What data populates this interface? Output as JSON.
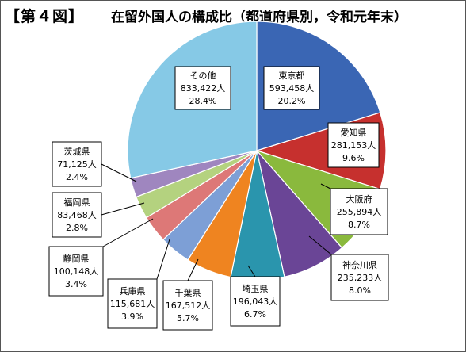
{
  "figure_label": "【第４図】",
  "chart_data": {
    "type": "pie",
    "title": "在留外国人の構成比（都道府県別，令和元年末）",
    "slices": [
      {
        "name": "東京都",
        "value": 593458,
        "value_label": "593,458人",
        "pct": "20.2%",
        "color": "#3a66b4"
      },
      {
        "name": "愛知県",
        "value": 281153,
        "value_label": "281,153人",
        "pct": "9.6%",
        "color": "#c6302e"
      },
      {
        "name": "大阪府",
        "value": 255894,
        "value_label": "255,894人",
        "pct": "8.7%",
        "color": "#8ab93d"
      },
      {
        "name": "神奈川県",
        "value": 235233,
        "value_label": "235,233人",
        "pct": "8.0%",
        "color": "#6a4596"
      },
      {
        "name": "埼玉県",
        "value": 196043,
        "value_label": "196,043人",
        "pct": "6.7%",
        "color": "#2a95ad"
      },
      {
        "name": "千葉県",
        "value": 167512,
        "value_label": "167,512人",
        "pct": "5.7%",
        "color": "#ef8420"
      },
      {
        "name": "兵庫県",
        "value": 115681,
        "value_label": "115,681人",
        "pct": "3.9%",
        "color": "#7d9fd6"
      },
      {
        "name": "静岡県",
        "value": 100148,
        "value_label": "100,148人",
        "pct": "3.4%",
        "color": "#dd7877"
      },
      {
        "name": "福岡県",
        "value": 83468,
        "value_label": "83,468人",
        "pct": "2.8%",
        "color": "#b4d27f"
      },
      {
        "name": "茨城県",
        "value": 71125,
        "value_label": "71,125人",
        "pct": "2.4%",
        "color": "#9f86bf"
      },
      {
        "name": "その他",
        "value": 833422,
        "value_label": "833,422人",
        "pct": "28.4%",
        "color": "#86c9e6"
      }
    ]
  }
}
